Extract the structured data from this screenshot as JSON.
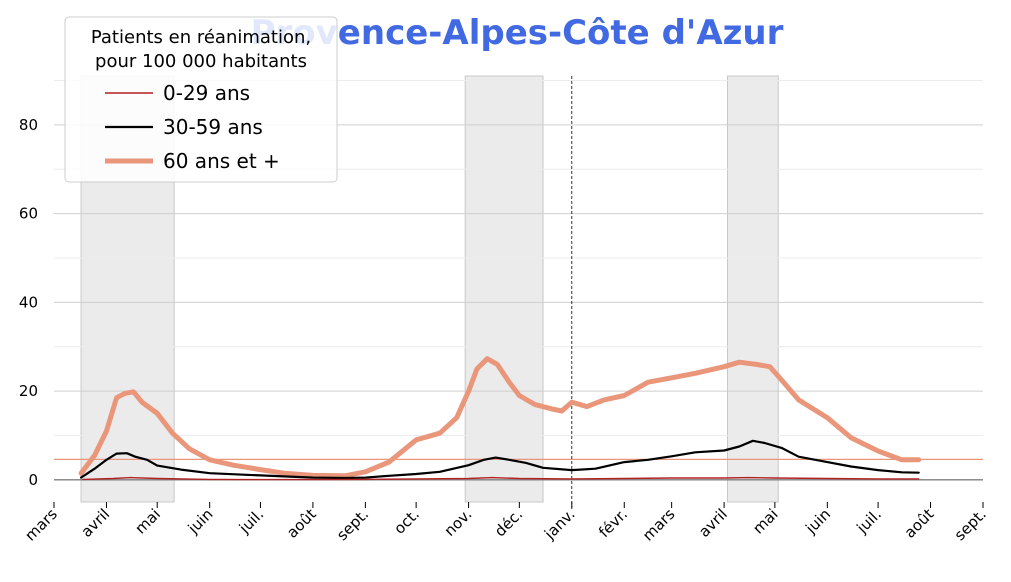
{
  "chart_data": {
    "type": "line",
    "title": "Provence-Alpes-Côte d'Azur",
    "xlabel": "",
    "ylabel": "",
    "x_start": "2020-03-01",
    "x_end": "2021-09-01",
    "ylim": [
      -5,
      91
    ],
    "yticks": [
      0,
      20,
      40,
      60,
      80
    ],
    "xticks": [
      {
        "date": "2020-03-01",
        "label": "mars"
      },
      {
        "date": "2020-04-01",
        "label": "avril"
      },
      {
        "date": "2020-05-01",
        "label": "mai"
      },
      {
        "date": "2020-06-01",
        "label": "juin"
      },
      {
        "date": "2020-07-01",
        "label": "juil."
      },
      {
        "date": "2020-08-01",
        "label": "août"
      },
      {
        "date": "2020-09-01",
        "label": "sept."
      },
      {
        "date": "2020-10-01",
        "label": "oct."
      },
      {
        "date": "2020-11-01",
        "label": "nov."
      },
      {
        "date": "2020-12-01",
        "label": "déc."
      },
      {
        "date": "2021-01-01",
        "label": "janv."
      },
      {
        "date": "2021-02-01",
        "label": "févr."
      },
      {
        "date": "2021-03-01",
        "label": "mars"
      },
      {
        "date": "2021-04-01",
        "label": "avril"
      },
      {
        "date": "2021-05-01",
        "label": "mai"
      },
      {
        "date": "2021-06-01",
        "label": "juin"
      },
      {
        "date": "2021-07-01",
        "label": "juil."
      },
      {
        "date": "2021-08-01",
        "label": "août"
      },
      {
        "date": "2021-09-01",
        "label": "sept."
      }
    ],
    "grid": true,
    "shaded_periods": [
      [
        "2020-03-17",
        "2020-05-11"
      ],
      [
        "2020-10-30",
        "2020-12-15"
      ],
      [
        "2021-04-03",
        "2021-05-03"
      ]
    ],
    "vertical_marker": "2021-01-01",
    "reference_line": {
      "y": 4.6,
      "color": "#e9967a"
    },
    "legend": {
      "title": "Patients en réanimation,\npour 100 000 habitants",
      "position": "top-left"
    },
    "series": [
      {
        "name": "0-29 ans",
        "color": "#b22222",
        "points": [
          [
            "2020-03-18",
            0.1
          ],
          [
            "2020-04-05",
            0.3
          ],
          [
            "2020-04-15",
            0.5
          ],
          [
            "2020-05-01",
            0.3
          ],
          [
            "2020-06-01",
            0.1
          ],
          [
            "2020-07-01",
            0.05
          ],
          [
            "2020-08-01",
            0.05
          ],
          [
            "2020-09-01",
            0.1
          ],
          [
            "2020-10-01",
            0.2
          ],
          [
            "2020-11-01",
            0.3
          ],
          [
            "2020-11-15",
            0.5
          ],
          [
            "2020-12-01",
            0.3
          ],
          [
            "2021-01-01",
            0.2
          ],
          [
            "2021-02-01",
            0.3
          ],
          [
            "2021-03-01",
            0.4
          ],
          [
            "2021-04-01",
            0.4
          ],
          [
            "2021-04-15",
            0.5
          ],
          [
            "2021-05-01",
            0.4
          ],
          [
            "2021-06-01",
            0.3
          ],
          [
            "2021-07-01",
            0.2
          ],
          [
            "2021-07-25",
            0.2
          ]
        ]
      },
      {
        "name": "30-59 ans",
        "color": "#000000",
        "points": [
          [
            "2020-03-17",
            0.5
          ],
          [
            "2020-03-25",
            2.5
          ],
          [
            "2020-04-01",
            4.5
          ],
          [
            "2020-04-07",
            5.9
          ],
          [
            "2020-04-13",
            6.0
          ],
          [
            "2020-04-18",
            5.2
          ],
          [
            "2020-04-25",
            4.5
          ],
          [
            "2020-05-01",
            3.2
          ],
          [
            "2020-05-15",
            2.3
          ],
          [
            "2020-06-01",
            1.5
          ],
          [
            "2020-07-01",
            1.0
          ],
          [
            "2020-08-01",
            0.5
          ],
          [
            "2020-08-20",
            0.4
          ],
          [
            "2020-09-01",
            0.5
          ],
          [
            "2020-09-15",
            0.9
          ],
          [
            "2020-10-01",
            1.3
          ],
          [
            "2020-10-15",
            1.8
          ],
          [
            "2020-11-01",
            3.3
          ],
          [
            "2020-11-10",
            4.5
          ],
          [
            "2020-11-17",
            5.0
          ],
          [
            "2020-11-25",
            4.5
          ],
          [
            "2020-12-05",
            3.8
          ],
          [
            "2020-12-15",
            2.7
          ],
          [
            "2021-01-01",
            2.2
          ],
          [
            "2021-01-15",
            2.5
          ],
          [
            "2021-02-01",
            4.0
          ],
          [
            "2021-02-15",
            4.5
          ],
          [
            "2021-03-01",
            5.3
          ],
          [
            "2021-03-15",
            6.2
          ],
          [
            "2021-04-01",
            6.6
          ],
          [
            "2021-04-10",
            7.5
          ],
          [
            "2021-04-18",
            8.8
          ],
          [
            "2021-04-25",
            8.3
          ],
          [
            "2021-05-05",
            7.2
          ],
          [
            "2021-05-15",
            5.2
          ],
          [
            "2021-06-01",
            4.0
          ],
          [
            "2021-06-15",
            3.0
          ],
          [
            "2021-07-01",
            2.2
          ],
          [
            "2021-07-15",
            1.7
          ],
          [
            "2021-07-25",
            1.6
          ]
        ]
      },
      {
        "name": "60 ans et +",
        "color": "#e9967a",
        "points": [
          [
            "2020-03-17",
            1.5
          ],
          [
            "2020-03-25",
            5.5
          ],
          [
            "2020-04-01",
            11.0
          ],
          [
            "2020-04-07",
            18.5
          ],
          [
            "2020-04-12",
            19.5
          ],
          [
            "2020-04-17",
            19.8
          ],
          [
            "2020-04-22",
            17.5
          ],
          [
            "2020-05-01",
            15.0
          ],
          [
            "2020-05-10",
            10.5
          ],
          [
            "2020-05-20",
            7.0
          ],
          [
            "2020-06-01",
            4.5
          ],
          [
            "2020-06-15",
            3.3
          ],
          [
            "2020-07-01",
            2.3
          ],
          [
            "2020-07-15",
            1.5
          ],
          [
            "2020-08-01",
            1.0
          ],
          [
            "2020-08-20",
            0.9
          ],
          [
            "2020-09-01",
            1.8
          ],
          [
            "2020-09-15",
            4.0
          ],
          [
            "2020-10-01",
            9.0
          ],
          [
            "2020-10-15",
            10.5
          ],
          [
            "2020-10-25",
            14.0
          ],
          [
            "2020-11-01",
            20.0
          ],
          [
            "2020-11-06",
            25.0
          ],
          [
            "2020-11-12",
            27.3
          ],
          [
            "2020-11-18",
            26.0
          ],
          [
            "2020-11-25",
            22.0
          ],
          [
            "2020-12-01",
            19.0
          ],
          [
            "2020-12-10",
            17.0
          ],
          [
            "2020-12-20",
            16.0
          ],
          [
            "2020-12-26",
            15.5
          ],
          [
            "2021-01-01",
            17.5
          ],
          [
            "2021-01-10",
            16.5
          ],
          [
            "2021-01-20",
            18.0
          ],
          [
            "2021-02-01",
            19.0
          ],
          [
            "2021-02-15",
            22.0
          ],
          [
            "2021-03-01",
            23.0
          ],
          [
            "2021-03-15",
            24.0
          ],
          [
            "2021-04-01",
            25.5
          ],
          [
            "2021-04-10",
            26.5
          ],
          [
            "2021-04-20",
            26.0
          ],
          [
            "2021-04-28",
            25.5
          ],
          [
            "2021-05-05",
            22.5
          ],
          [
            "2021-05-15",
            18.0
          ],
          [
            "2021-06-01",
            14.0
          ],
          [
            "2021-06-15",
            9.5
          ],
          [
            "2021-07-01",
            6.5
          ],
          [
            "2021-07-15",
            4.5
          ],
          [
            "2021-07-25",
            4.5
          ]
        ]
      }
    ]
  }
}
